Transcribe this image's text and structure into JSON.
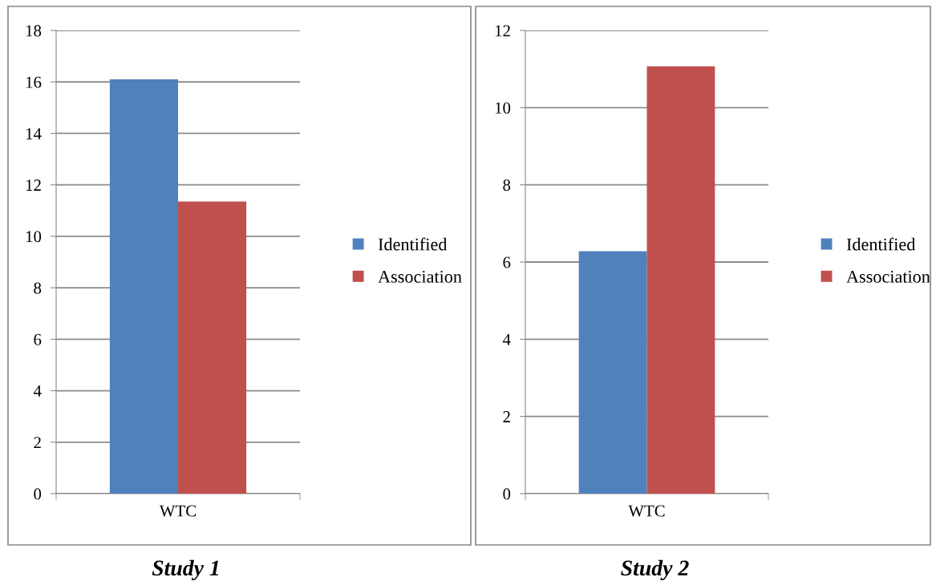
{
  "chart_data": [
    {
      "type": "bar",
      "title": "Study 1",
      "categories": [
        "WTC"
      ],
      "series": [
        {
          "name": "Identified",
          "color": "#4f81bd",
          "values": [
            16.1
          ]
        },
        {
          "name": "Association",
          "color": "#c0504d",
          "values": [
            11.35
          ]
        }
      ],
      "ylim": [
        0,
        18
      ],
      "yticks": [
        0,
        2,
        4,
        6,
        8,
        10,
        12,
        14,
        16,
        18
      ],
      "grid": "y",
      "legend": "right"
    },
    {
      "type": "bar",
      "title": "Study 2",
      "categories": [
        "WTC"
      ],
      "series": [
        {
          "name": "Identified",
          "color": "#4f81bd",
          "values": [
            6.28
          ]
        },
        {
          "name": "Association",
          "color": "#c0504d",
          "values": [
            11.07
          ]
        }
      ],
      "ylim": [
        0,
        12
      ],
      "yticks": [
        0,
        2,
        4,
        6,
        8,
        10,
        12
      ],
      "grid": "y",
      "legend": "right"
    }
  ]
}
